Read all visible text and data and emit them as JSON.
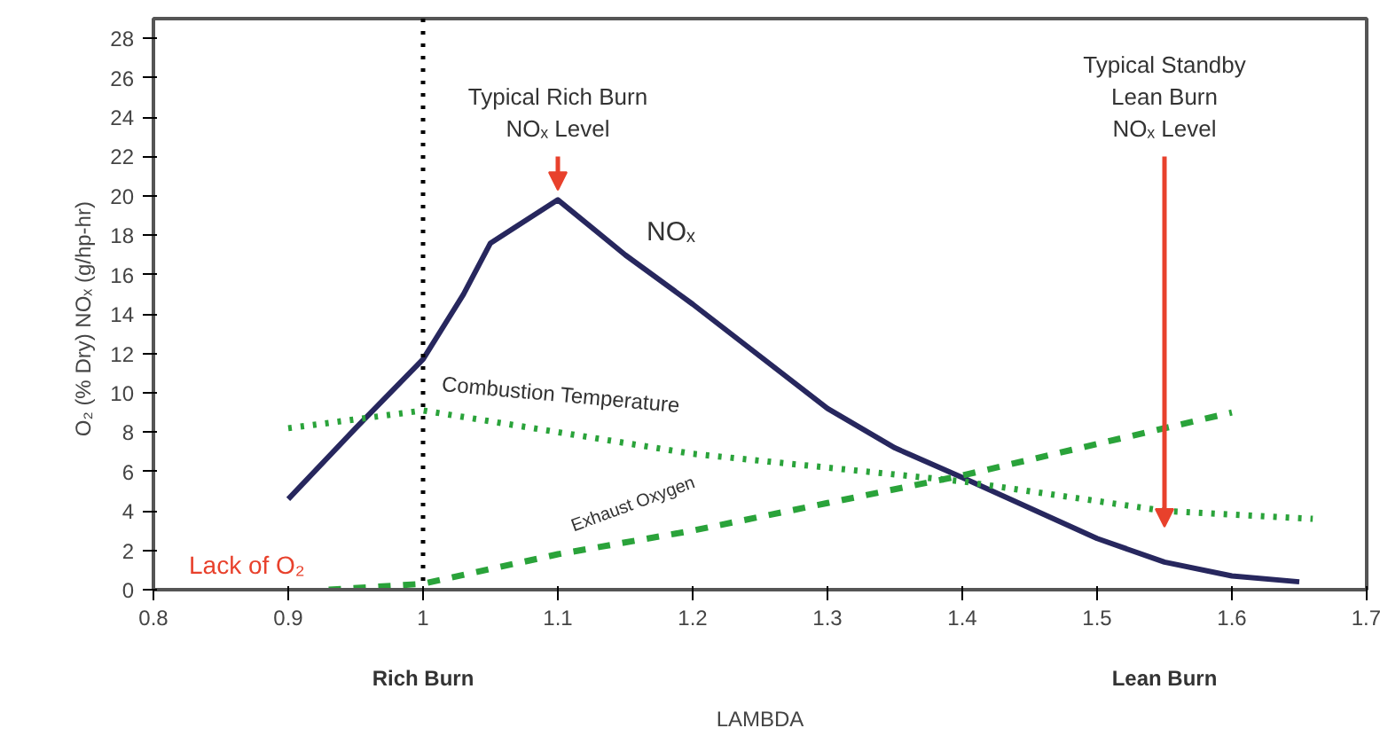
{
  "chart_data": {
    "type": "line",
    "xlabel": "LAMBDA",
    "ylabel": "O₂ (% Dry)      NOₓ (g/hp-hr)",
    "series": [
      {
        "name": "NOₓ",
        "color": "#27275e",
        "line_style": "solid",
        "x": [
          0.9,
          0.95,
          1.0,
          1.03,
          1.05,
          1.1,
          1.15,
          1.2,
          1.3,
          1.35,
          1.4,
          1.5,
          1.55,
          1.6,
          1.65
        ],
        "values": [
          4.6,
          8.2,
          11.7,
          15.0,
          17.6,
          19.8,
          17.0,
          14.5,
          9.2,
          7.2,
          5.7,
          2.6,
          1.4,
          0.7,
          0.4
        ]
      },
      {
        "name": "Combustion Temperature",
        "color": "#2aa33a",
        "line_style": "dotted",
        "x": [
          0.9,
          1.0,
          1.2,
          1.4,
          1.55,
          1.66
        ],
        "values": [
          8.2,
          9.1,
          6.9,
          5.5,
          4.0,
          3.6
        ]
      },
      {
        "name": "Exhaust Oxygen",
        "color": "#2aa33a",
        "line_style": "dashed",
        "x": [
          0.93,
          1.0,
          1.1,
          1.2,
          1.3,
          1.4,
          1.5,
          1.6
        ],
        "values": [
          0,
          0.3,
          1.8,
          3.0,
          4.4,
          5.8,
          7.4,
          9.0
        ]
      }
    ],
    "xlim": [
      0.8,
      1.7
    ],
    "xticks": [
      0.8,
      0.9,
      1,
      1.1,
      1.2,
      1.3,
      1.4,
      1.5,
      1.6,
      1.7
    ],
    "ylim": [
      0,
      29
    ],
    "yticks": [
      0,
      2,
      4,
      6,
      8,
      10,
      12,
      14,
      16,
      18,
      20,
      22,
      24,
      26,
      28
    ],
    "ref_lines": [
      {
        "axis": "x",
        "value": 1.0,
        "color": "#000000",
        "line_style": "dotted"
      }
    ],
    "annotations": [
      "Typical Rich Burn\nNOₓ Level",
      "Typical Standby\nLean Burn\nNOₓ Level",
      "Lack of O₂",
      "Rich Burn",
      "Lean Burn"
    ],
    "grid": false
  }
}
